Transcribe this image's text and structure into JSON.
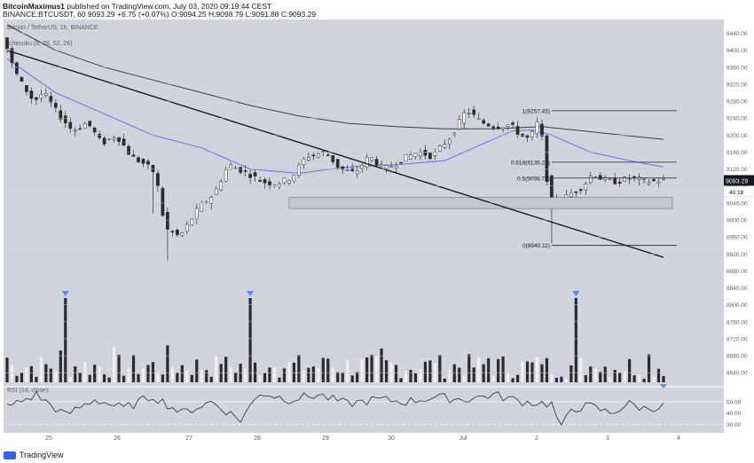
{
  "header": {
    "author": "BitcoinMaximus1",
    "published": "published on TradingView.com, July 03, 2020 09:19:44 CEST",
    "symbol": "BINANCE:BTCUSDT, 60",
    "price": "9093.29",
    "change": "+6.75 (+0.07%)",
    "ohlc": "O:9094.25 H:9098.79 L:9091.88 C:9093.29"
  },
  "legend": {
    "title": "Bitcoin / TetherUS, 1h, BINANCE",
    "indicator": "Ichimoku (9, 26, 52, 26)",
    "rsi": "RSI (14, close)"
  },
  "footer": {
    "brand": "TradingView"
  },
  "colors": {
    "background": "#d1d4dc",
    "candle": "#2b2b2b",
    "ma_fast": "#6a6aff",
    "ma_slow": "#3d3d3d",
    "marker": "#4c8ef7",
    "support_zone": "#c4c7cf"
  },
  "chart_data": {
    "type": "line",
    "price_axis": {
      "ticks": [
        9440,
        9400,
        9360,
        9320,
        9280,
        9240,
        9200,
        9160,
        9120,
        9080,
        9040,
        9000,
        8960,
        8920,
        8880,
        8840,
        8800,
        8760,
        8720,
        8680,
        8640
      ],
      "ylim": [
        8630,
        9460
      ],
      "current_price": "9093.29",
      "countdown": "40:18"
    },
    "time_axis": {
      "labels": [
        "25",
        "26",
        "27",
        "28",
        "29",
        "30",
        "Jul",
        "2",
        "3",
        "4"
      ]
    },
    "price_path": {
      "x": [
        0,
        1,
        3,
        6,
        8,
        11,
        14,
        17,
        20,
        23,
        26,
        29,
        31,
        33,
        36,
        40,
        43,
        46,
        50,
        53,
        56,
        59,
        62,
        66,
        69,
        72,
        75,
        78,
        80,
        82,
        85,
        88,
        92,
        95,
        98,
        101,
        104,
        106,
        108,
        110,
        112,
        114,
        116,
        119,
        121,
        123,
        126,
        129,
        132,
        135
      ],
      "y": [
        9430,
        9380,
        9330,
        9280,
        9300,
        9250,
        9210,
        9230,
        9180,
        9200,
        9150,
        9130,
        9110,
        8980,
        8960,
        9030,
        9060,
        9130,
        9110,
        9090,
        9085,
        9100,
        9150,
        9160,
        9120,
        9110,
        9150,
        9120,
        9130,
        9145,
        9160,
        9150,
        9200,
        9260,
        9230,
        9220,
        9225,
        9200,
        9190,
        9240,
        9050,
        9040,
        9060,
        9080,
        9110,
        9095,
        9090,
        9100,
        9090,
        9093
      ]
    },
    "ma_fast": {
      "x": [
        0,
        10,
        20,
        30,
        40,
        50,
        60,
        70,
        80,
        90,
        100,
        104,
        108,
        112,
        120,
        128,
        135
      ],
      "y": [
        9380,
        9300,
        9250,
        9200,
        9170,
        9120,
        9110,
        9125,
        9130,
        9140,
        9190,
        9210,
        9212,
        9200,
        9160,
        9140,
        9125
      ]
    },
    "ma_slow": {
      "x": [
        0,
        10,
        20,
        30,
        40,
        50,
        60,
        70,
        80,
        90,
        100,
        110,
        120,
        128,
        135
      ],
      "y": [
        9460,
        9400,
        9360,
        9330,
        9300,
        9270,
        9245,
        9228,
        9220,
        9215,
        9215,
        9220,
        9208,
        9198,
        9190
      ]
    },
    "trendline": {
      "x": [
        0,
        135
      ],
      "y": [
        9400,
        8912
      ]
    },
    "support_zone": {
      "x": [
        58,
        135
      ],
      "y_low": 9027,
      "y_high": 9053
    },
    "fibonacci": [
      {
        "label": "1(9257.45)",
        "value": 9257.45
      },
      {
        "label": "0.618(9136.23)",
        "value": 9136.23
      },
      {
        "label": "0.5(9098.78)",
        "value": 9098.78
      },
      {
        "label": "0(8940.11)",
        "value": 8940.11
      }
    ],
    "fib_x": [
      112,
      135
    ],
    "volume_spike_markers_x": [
      12,
      50,
      117
    ],
    "rsi": {
      "ticks": [
        50.0,
        40.0,
        30.0
      ],
      "ylim": [
        25,
        60
      ],
      "x": [
        0,
        6,
        12,
        18,
        24,
        30,
        36,
        42,
        48,
        52,
        58,
        64,
        70,
        76,
        82,
        88,
        94,
        100,
        106,
        112,
        114,
        116,
        120,
        124,
        128,
        131,
        135
      ],
      "y": [
        45,
        56,
        38,
        52,
        44,
        55,
        40,
        50,
        34,
        58,
        52,
        56,
        48,
        52,
        50,
        54,
        52,
        56,
        50,
        48,
        26,
        44,
        46,
        40,
        48,
        44,
        46
      ]
    }
  }
}
